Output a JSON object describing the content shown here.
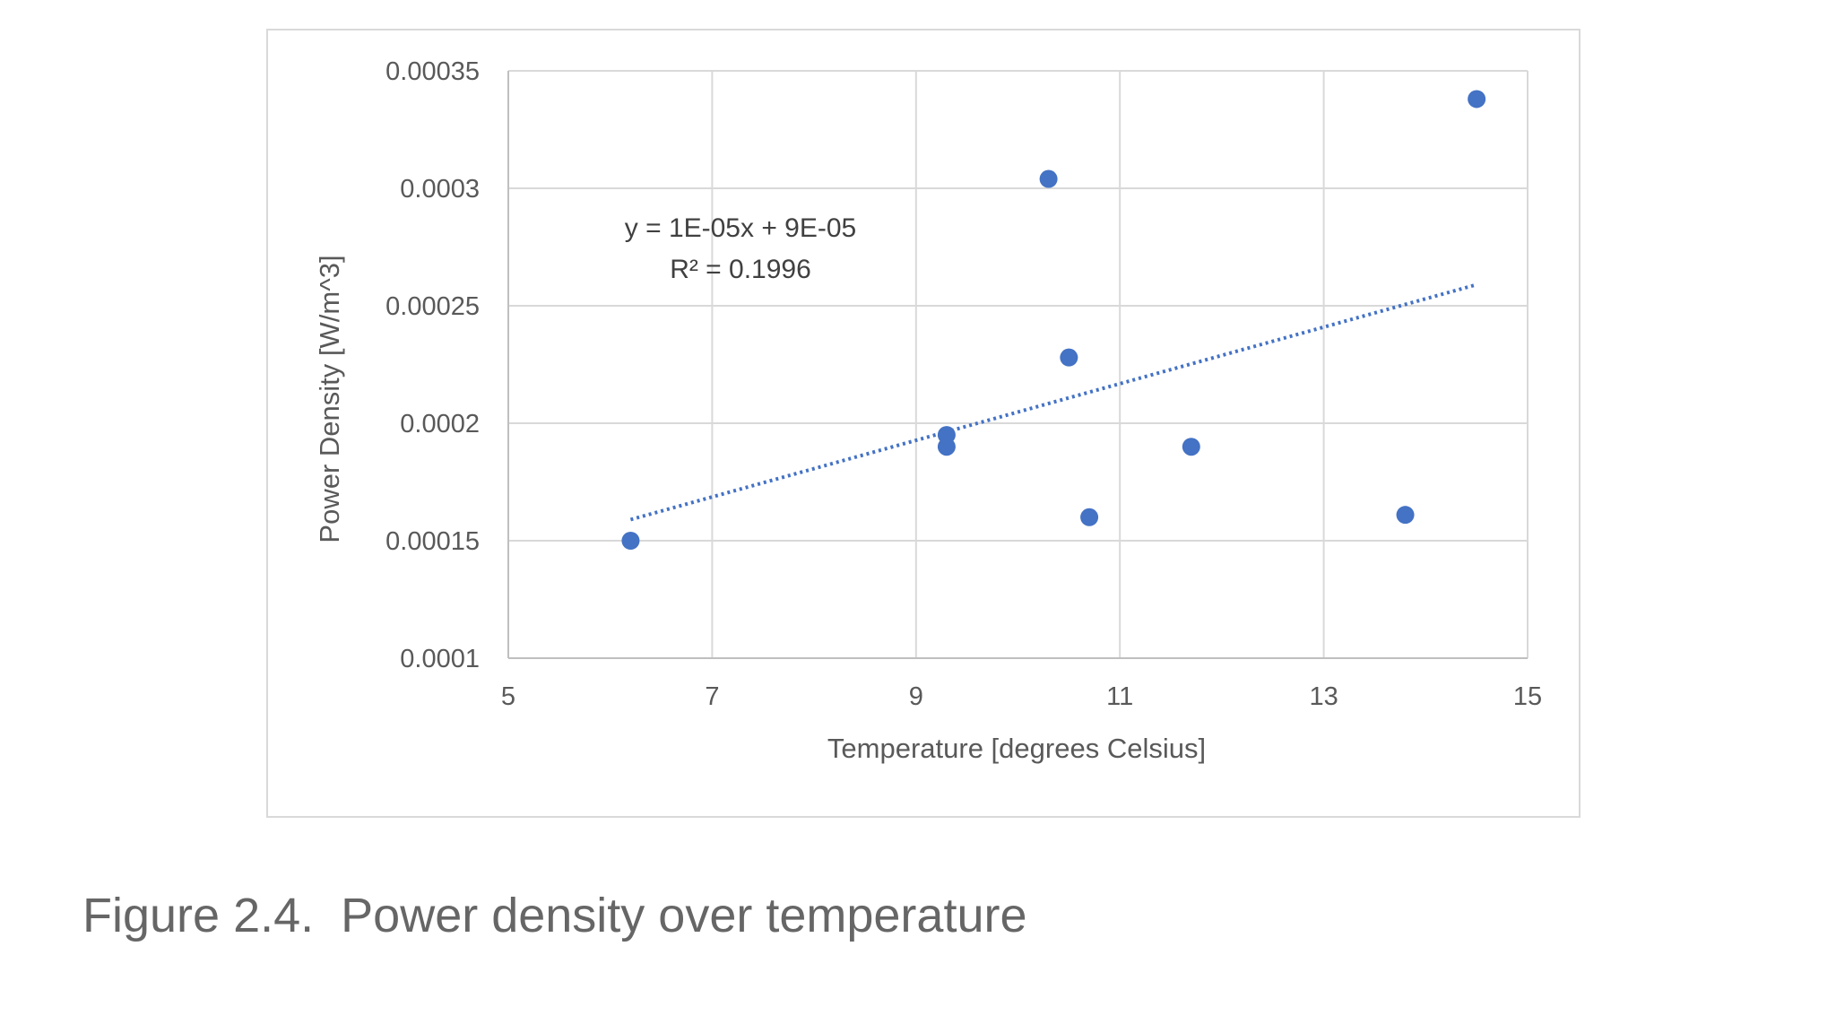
{
  "caption": "Figure 2.4.  Power density over temperature",
  "chart_data": {
    "type": "scatter",
    "title": "",
    "xlabel": "Temperature  [degrees Celsius]",
    "ylabel": "Power Density [W/m^3]",
    "xlim": [
      5,
      15
    ],
    "ylim": [
      0.0001,
      0.00035
    ],
    "x_ticks": [
      5,
      7,
      9,
      11,
      13,
      15
    ],
    "x_tick_labels": [
      "5",
      "7",
      "9",
      "11",
      "13",
      "15"
    ],
    "y_ticks": [
      0.0001,
      0.00015,
      0.0002,
      0.00025,
      0.0003,
      0.00035
    ],
    "y_tick_labels": [
      "0.0001",
      "0.00015",
      "0.0002",
      "0.00025",
      "0.0003",
      "0.00035"
    ],
    "grid": true,
    "legend": "none",
    "series": [
      {
        "name": "Power density",
        "color": "#4472c4",
        "points": [
          {
            "x": 6.2,
            "y": 0.00015
          },
          {
            "x": 9.3,
            "y": 0.000195
          },
          {
            "x": 9.3,
            "y": 0.00019
          },
          {
            "x": 10.3,
            "y": 0.000304
          },
          {
            "x": 10.5,
            "y": 0.000228
          },
          {
            "x": 10.7,
            "y": 0.00016
          },
          {
            "x": 11.7,
            "y": 0.00019
          },
          {
            "x": 13.8,
            "y": 0.000161
          },
          {
            "x": 14.5,
            "y": 0.000338
          }
        ]
      }
    ],
    "trendline": {
      "type": "linear",
      "color": "#4472c4",
      "x_range": [
        6.2,
        14.5
      ],
      "y_range": [
        0.000159,
        0.000259
      ],
      "equation": "y = 1E-05x + 9E-05",
      "r_squared": "R² = 0.1996"
    }
  }
}
